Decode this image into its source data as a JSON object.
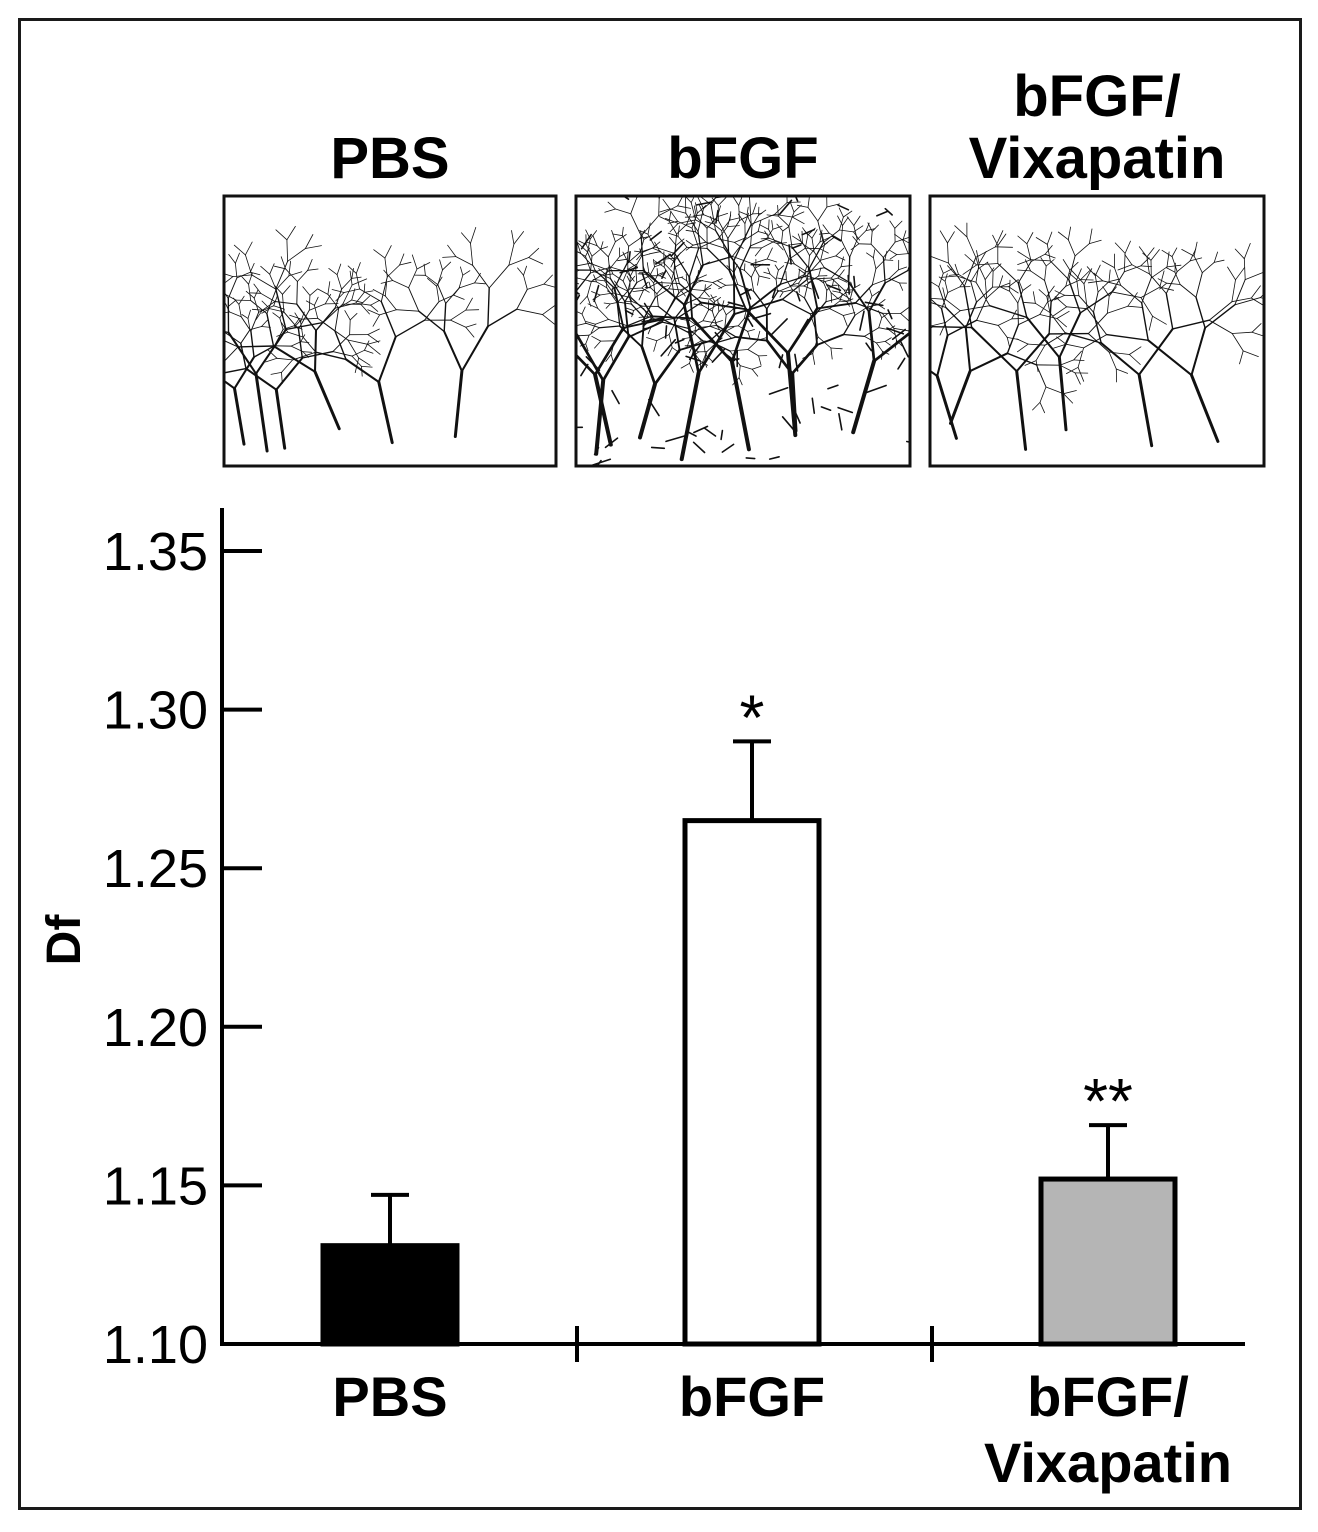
{
  "panels": [
    {
      "title_lines": [
        "PBS"
      ],
      "density": 0.55,
      "stroke": 3
    },
    {
      "title_lines": [
        "bFGF"
      ],
      "density": 1.0,
      "stroke": 4
    },
    {
      "title_lines": [
        "bFGF/",
        "Vixapatin"
      ],
      "density": 0.5,
      "stroke": 3
    }
  ],
  "chart_data": {
    "type": "bar",
    "categories": [
      {
        "lines": [
          "PBS"
        ]
      },
      {
        "lines": [
          "bFGF"
        ]
      },
      {
        "lines": [
          "bFGF/",
          "Vixapatin"
        ]
      }
    ],
    "values": [
      1.131,
      1.265,
      1.152
    ],
    "errors": [
      0.016,
      0.025,
      0.017
    ],
    "significance": [
      "",
      "*",
      "**"
    ],
    "bar_colors": [
      "#000000",
      "#ffffff",
      "#b5b5b5"
    ],
    "ylabel": "Df",
    "ylim": [
      1.1,
      1.36
    ],
    "yticks": [
      1.1,
      1.15,
      1.2,
      1.25,
      1.3,
      1.35
    ],
    "ytick_labels": [
      "1.10",
      "1.15",
      "1.20",
      "1.25",
      "1.30",
      "1.35"
    ],
    "grid": false,
    "legend": "none"
  }
}
